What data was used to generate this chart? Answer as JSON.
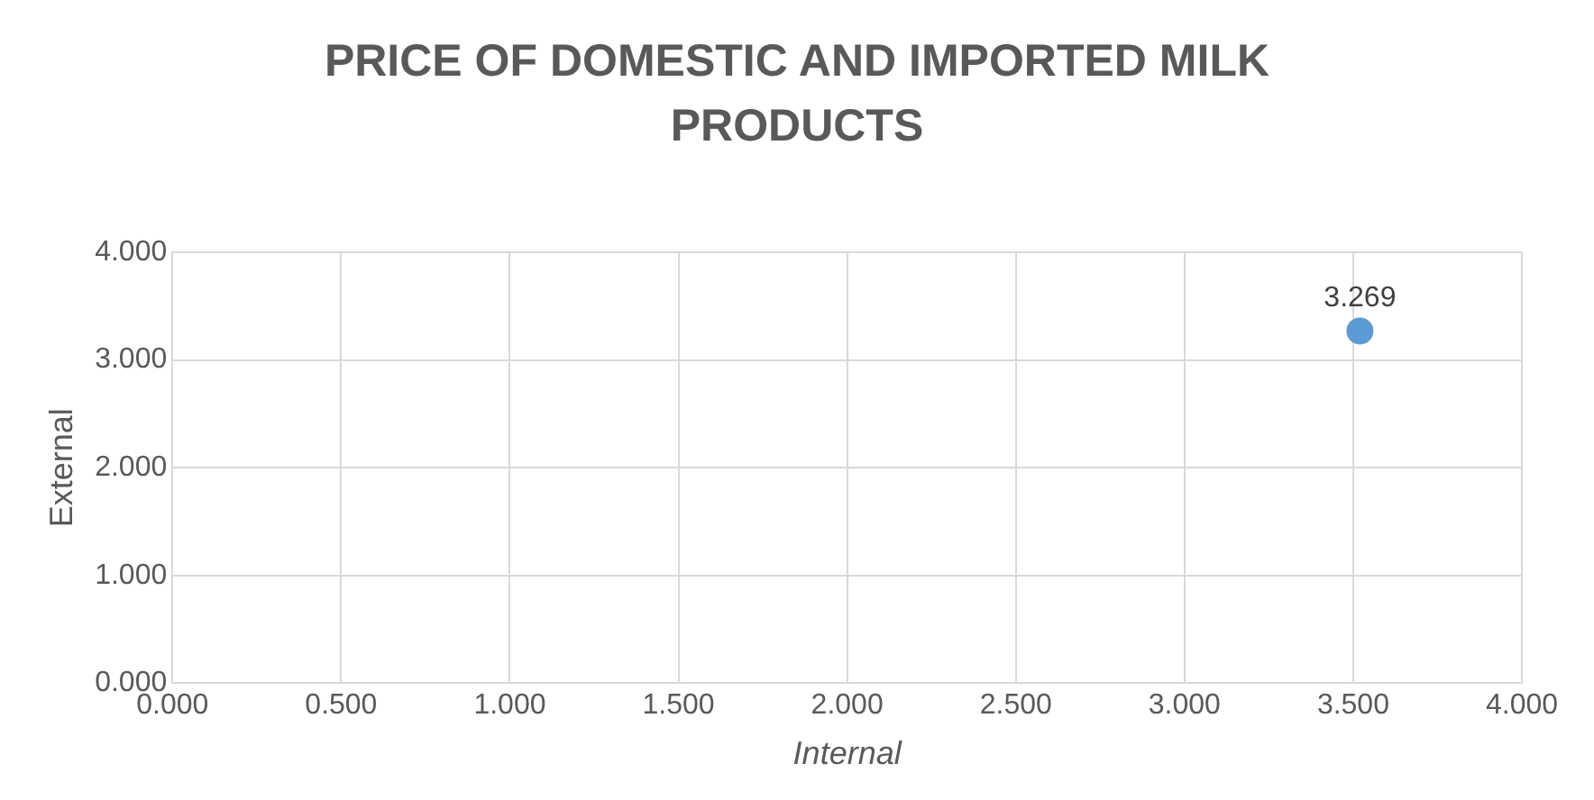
{
  "chart_data": {
    "type": "scatter",
    "title": "PRICE OF DOMESTIC AND IMPORTED MILK PRODUCTS",
    "xlabel": "Internal",
    "ylabel": "External",
    "x": [
      3.52
    ],
    "values": [
      3.269
    ],
    "color": "#5b9bd5",
    "marker": "circle",
    "data_labels": true,
    "grid": true,
    "legend": false,
    "xlim": [
      0,
      4
    ],
    "xticks": [
      {
        "value": 0,
        "label": "0.000"
      },
      {
        "value": 0.5,
        "label": "0.500"
      },
      {
        "value": 1,
        "label": "1.000"
      },
      {
        "value": 1.5,
        "label": "1.500"
      },
      {
        "value": 2,
        "label": "2.000"
      },
      {
        "value": 2.5,
        "label": "2.500"
      },
      {
        "value": 3,
        "label": "3.000"
      },
      {
        "value": 3.5,
        "label": "3.500"
      },
      {
        "value": 4,
        "label": "4.000"
      }
    ],
    "ylim": [
      0,
      4
    ],
    "yticks": [
      {
        "value": 0,
        "label": "0.000"
      },
      {
        "value": 1,
        "label": "1.000"
      },
      {
        "value": 2,
        "label": "2.000"
      },
      {
        "value": 3,
        "label": "3.000"
      },
      {
        "value": 4,
        "label": "4.000"
      }
    ]
  }
}
